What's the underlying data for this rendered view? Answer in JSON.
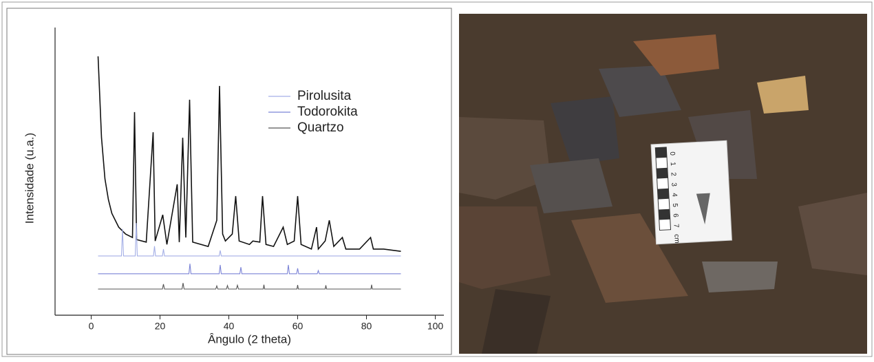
{
  "chart_data": {
    "type": "line",
    "x_label": "Ângulo (2 theta)",
    "y_label": "Intensidade (u.a.)",
    "xlim": [
      -10.5,
      102.5
    ],
    "xticks": [
      0,
      20,
      40,
      60,
      80,
      100
    ],
    "ylim": [
      0,
      100
    ],
    "legend": "upper right",
    "series": [
      {
        "color": "#111111",
        "x": [
          2,
          3,
          4,
          5,
          6,
          8,
          10,
          12,
          12.6,
          13.2,
          16,
          18,
          18.6,
          20.8,
          22,
          25,
          25.6,
          26.6,
          27.5,
          28.6,
          29.5,
          34,
          36.5,
          37.3,
          38.2,
          39,
          41,
          42,
          43,
          46,
          47,
          49,
          49.8,
          50.8,
          53,
          55.8,
          57,
          59,
          60,
          61,
          64,
          65.5,
          66,
          68,
          69.2,
          70.5,
          73,
          74,
          78,
          81.2,
          82,
          85,
          90
        ],
        "values": [
          90,
          61.7,
          47.4,
          40.2,
          35.4,
          30.6,
          28.2,
          27,
          70.6,
          26.3,
          25.4,
          63.6,
          25.8,
          34.9,
          24.6,
          45.5,
          25.4,
          61.7,
          27,
          74.9,
          25.4,
          23.9,
          33,
          79.7,
          28.2,
          25.8,
          28.2,
          41.4,
          25.8,
          24.6,
          25.8,
          25.4,
          41.4,
          24.6,
          23.9,
          30.6,
          24.6,
          25.8,
          41.4,
          24.6,
          23,
          30.6,
          23,
          25.8,
          33,
          23.9,
          27,
          23,
          23,
          27,
          23,
          23,
          22.2
        ]
      },
      {
        "name": "Pirolusita",
        "color": "#a3aee6",
        "x": [
          2,
          8.8,
          9.1,
          9.4,
          12.8,
          13.1,
          13.4,
          18.1,
          18.4,
          18.7,
          20.7,
          21,
          21.3,
          37.2,
          37.5,
          37.8,
          90
        ],
        "values": [
          20.6,
          20.6,
          30,
          20.6,
          20.6,
          32,
          20.6,
          20.6,
          24,
          20.6,
          20.6,
          23,
          20.6,
          20.6,
          22.5,
          20.6,
          20.6
        ]
      },
      {
        "name": "Todorokita",
        "color": "#7b83d6",
        "x": [
          2,
          28.4,
          28.7,
          29,
          37.2,
          37.5,
          37.8,
          43.2,
          43.5,
          43.8,
          57,
          57.3,
          57.6,
          59.7,
          60,
          60.3,
          65.7,
          66,
          66.3,
          90
        ],
        "values": [
          14.4,
          14.4,
          17.9,
          14.4,
          14.4,
          17.5,
          14.4,
          14.4,
          16.7,
          14.4,
          14.4,
          17.5,
          14.4,
          14.4,
          16.3,
          14.4,
          14.4,
          15.5,
          14.4,
          14.4
        ]
      },
      {
        "name": "Quartzo",
        "color": "#555555",
        "x": [
          2,
          20.7,
          21,
          21.3,
          26.4,
          26.7,
          27,
          36.2,
          36.5,
          36.8,
          39.3,
          39.6,
          39.9,
          42.2,
          42.5,
          42.8,
          50,
          50.2,
          50.4,
          59.8,
          60,
          60.2,
          68,
          68.2,
          68.4,
          81.3,
          81.5,
          81.7,
          90
        ],
        "values": [
          9.1,
          9.1,
          10.8,
          9.1,
          9.1,
          11.2,
          9.1,
          9.1,
          10.2,
          9.1,
          9.1,
          10.3,
          9.1,
          9.1,
          10.4,
          9.1,
          9.1,
          10.6,
          9.1,
          9.1,
          10.5,
          9.1,
          9.1,
          10.4,
          9.1,
          9.1,
          10.6,
          9.1,
          9.1
        ]
      }
    ]
  },
  "photo": {
    "scale_labels": [
      "0",
      "1",
      "2",
      "3",
      "4",
      "5",
      "6",
      "7",
      "cm"
    ]
  }
}
